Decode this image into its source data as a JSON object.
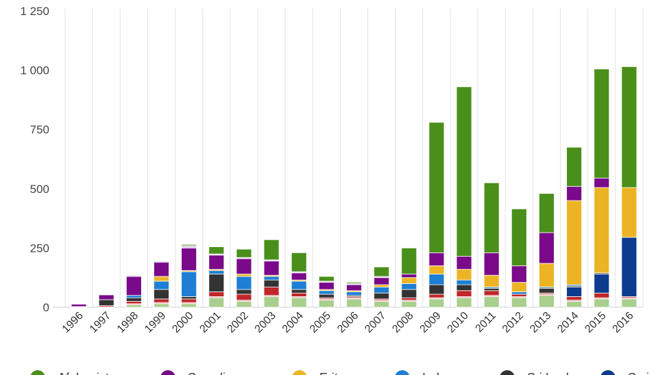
{
  "chart_data": {
    "type": "bar",
    "stacked": true,
    "title": "",
    "xlabel": "",
    "ylabel": "",
    "ylim": [
      0,
      1250
    ],
    "yticks": [
      0,
      250,
      500,
      750,
      1000,
      1250
    ],
    "ytick_labels": [
      "0",
      "250",
      "500",
      "750",
      "1 000",
      "1 250"
    ],
    "grid": "vertical",
    "legend_position": "bottom",
    "categories": [
      "1996",
      "1997",
      "1998",
      "1999",
      "2000",
      "2001",
      "2002",
      "2003",
      "2004",
      "2005",
      "2006",
      "2007",
      "2008",
      "2009",
      "2010",
      "2011",
      "2012",
      "2013",
      "2014",
      "2015",
      "2016"
    ],
    "series": [
      {
        "name": "",
        "color": "#a9cf8e",
        "values": [
          0,
          2,
          10,
          15,
          15,
          40,
          25,
          45,
          40,
          30,
          35,
          25,
          25,
          35,
          40,
          45,
          40,
          50,
          25,
          35,
          35
        ]
      },
      {
        "name": "",
        "color": "#e8a0a0",
        "values": [
          0,
          0,
          5,
          5,
          5,
          5,
          5,
          5,
          5,
          5,
          5,
          5,
          5,
          5,
          5,
          5,
          5,
          5,
          5,
          5,
          5
        ]
      },
      {
        "name": "",
        "color": "#c0262a",
        "values": [
          1,
          5,
          10,
          15,
          15,
          20,
          25,
          35,
          15,
          5,
          5,
          5,
          10,
          15,
          25,
          20,
          10,
          5,
          15,
          20,
          5
        ]
      },
      {
        "name": "Syria",
        "color": "#0d3b8f",
        "values": [
          0,
          0,
          0,
          0,
          0,
          0,
          0,
          0,
          0,
          0,
          0,
          0,
          0,
          0,
          0,
          0,
          0,
          0,
          40,
          80,
          250
        ]
      },
      {
        "name": "Sri Lanka",
        "color": "#333333",
        "values": [
          0,
          25,
          15,
          40,
          10,
          75,
          20,
          30,
          15,
          15,
          5,
          25,
          35,
          40,
          25,
          10,
          0,
          20,
          5,
          5,
          0
        ]
      },
      {
        "name": "Irak",
        "color": "#1e7fd4",
        "values": [
          2,
          0,
          10,
          35,
          105,
          15,
          55,
          15,
          35,
          15,
          15,
          25,
          25,
          45,
          20,
          5,
          10,
          5,
          5,
          0,
          0
        ]
      },
      {
        "name": "Eritrea",
        "color": "#ecb424",
        "values": [
          0,
          0,
          0,
          20,
          5,
          5,
          10,
          5,
          5,
          5,
          5,
          10,
          25,
          35,
          45,
          50,
          40,
          100,
          355,
          360,
          210
        ]
      },
      {
        "name": "Somalia",
        "color": "#7a0a8a",
        "values": [
          10,
          20,
          80,
          60,
          95,
          60,
          65,
          60,
          30,
          30,
          25,
          30,
          15,
          55,
          55,
          95,
          70,
          130,
          60,
          40,
          0
        ]
      },
      {
        "name": "",
        "color": "#d8c8e8",
        "values": [
          2,
          0,
          5,
          5,
          10,
          5,
          5,
          5,
          5,
          5,
          5,
          5,
          0,
          0,
          0,
          0,
          0,
          0,
          0,
          0,
          0
        ]
      },
      {
        "name": "Afghanistan",
        "color": "#4a8f1a",
        "values": [
          0,
          0,
          0,
          0,
          5,
          30,
          35,
          85,
          80,
          20,
          5,
          40,
          110,
          550,
          715,
          295,
          240,
          165,
          165,
          460,
          510
        ]
      }
    ],
    "legend": [
      {
        "label": "Afghanistan",
        "color": "#4a8f1a"
      },
      {
        "label": "Somalia",
        "color": "#7a0a8a"
      },
      {
        "label": "Eritrea",
        "color": "#ecb424"
      },
      {
        "label": "Irak",
        "color": "#1e7fd4"
      },
      {
        "label": "Sri Lanka",
        "color": "#333333"
      },
      {
        "label": "Syria",
        "color": "#0d3b8f"
      }
    ]
  }
}
